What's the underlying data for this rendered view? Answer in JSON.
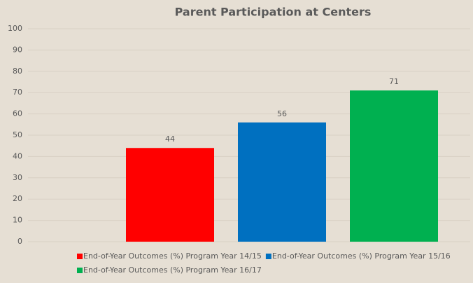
{
  "chart_data": {
    "type": "bar",
    "title": "Parent Participation at Centers",
    "categories": [
      null
    ],
    "series": [
      {
        "name": "End-of-Year Outcomes (%) Program Year 14/15",
        "color": "#ff0000",
        "values": [
          44
        ]
      },
      {
        "name": "End-of-Year Outcomes (%) Program Year 15/16",
        "color": "#0070c0",
        "values": [
          56
        ]
      },
      {
        "name": "End-of-Year Outcomes (%) Program Year 16/17",
        "color": "#00b050",
        "values": [
          71
        ]
      }
    ],
    "ylim": [
      0,
      100
    ],
    "yticks": [
      0,
      10,
      20,
      30,
      40,
      50,
      60,
      70,
      80,
      90,
      100
    ],
    "grid": true,
    "legend": "bottom"
  }
}
